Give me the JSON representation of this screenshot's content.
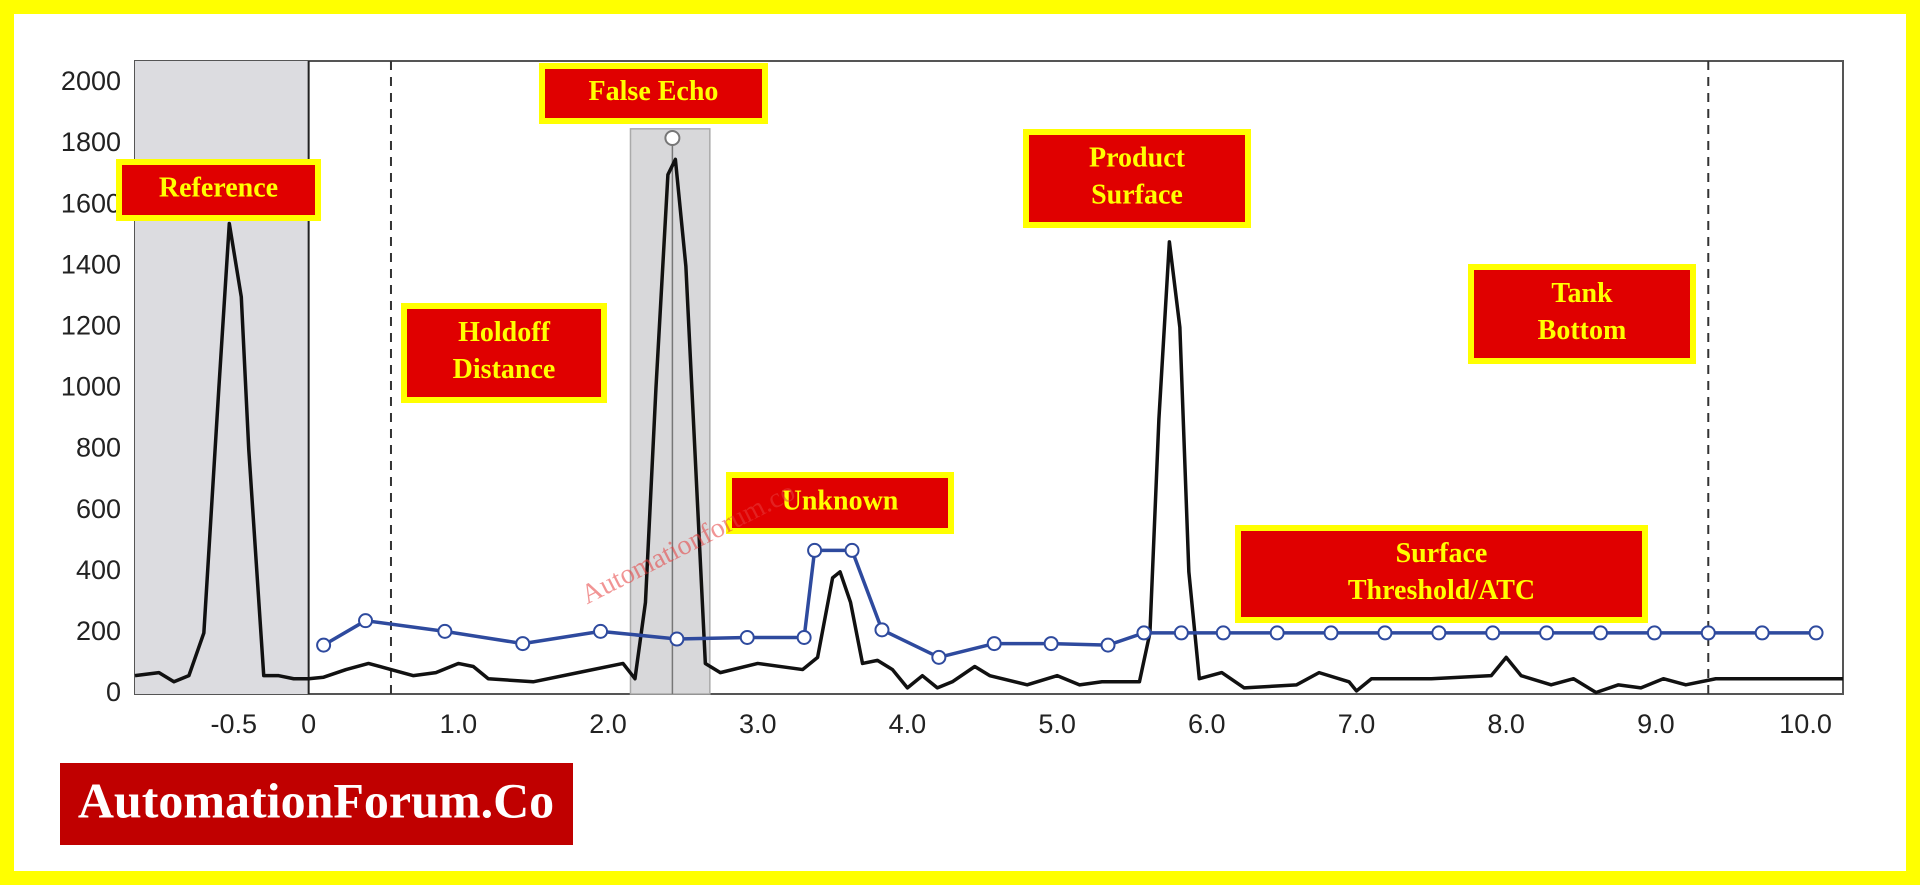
{
  "chart_data": {
    "type": "line",
    "xlim": [
      -1.16,
      10.25
    ],
    "ylim": [
      0,
      2072
    ],
    "xticks": [
      -0.5,
      0,
      {
        "value": 1,
        "label": "1.0"
      },
      {
        "value": 2,
        "label": "2.0"
      },
      {
        "value": 3,
        "label": "3.0"
      },
      {
        "value": 4,
        "label": "4.0"
      },
      {
        "value": 5,
        "label": "5.0"
      },
      {
        "value": 6,
        "label": "6.0"
      },
      {
        "value": 7,
        "label": "7.0"
      },
      {
        "value": 8,
        "label": "8.0"
      },
      {
        "value": 9,
        "label": "9.0"
      },
      {
        "value": 10,
        "label": "10.0"
      }
    ],
    "yticks": [
      0,
      200,
      400,
      600,
      800,
      1000,
      1200,
      1400,
      1600,
      1800,
      2000
    ],
    "reference_zone": [
      -1.16,
      0
    ],
    "false_echo_zone": {
      "x": [
        2.15,
        2.68
      ],
      "top": 1850,
      "peak": [
        2.43,
        1820
      ]
    },
    "dashed_lines": [
      0.55,
      9.35
    ],
    "series": [
      {
        "color": "#111111",
        "markers": false,
        "x": [
          -1.16,
          -1.0,
          -0.9,
          -0.8,
          -0.7,
          -0.6,
          -0.53,
          -0.45,
          -0.4,
          -0.3,
          -0.2,
          -0.1,
          0,
          0.1,
          0.25,
          0.4,
          0.55,
          0.7,
          0.85,
          1.0,
          1.1,
          1.2,
          1.5,
          1.8,
          2.1,
          2.18,
          2.25,
          2.32,
          2.4,
          2.45,
          2.52,
          2.6,
          2.65,
          2.75,
          3.0,
          3.3,
          3.4,
          3.5,
          3.55,
          3.62,
          3.7,
          3.8,
          3.9,
          4.0,
          4.1,
          4.2,
          4.3,
          4.45,
          4.55,
          4.8,
          5.0,
          5.15,
          5.3,
          5.55,
          5.62,
          5.68,
          5.75,
          5.82,
          5.88,
          5.95,
          6.1,
          6.25,
          6.6,
          6.75,
          6.95,
          7.0,
          7.1,
          7.5,
          7.9,
          8.0,
          8.1,
          8.3,
          8.45,
          8.6,
          8.75,
          8.9,
          9.05,
          9.2,
          9.4,
          10.25
        ],
        "values": [
          60,
          70,
          40,
          60,
          200,
          1000,
          1540,
          1300,
          800,
          60,
          60,
          50,
          50,
          55,
          80,
          100,
          80,
          60,
          70,
          100,
          90,
          50,
          40,
          70,
          100,
          50,
          300,
          1000,
          1700,
          1750,
          1400,
          600,
          100,
          70,
          100,
          80,
          120,
          380,
          400,
          300,
          100,
          110,
          80,
          20,
          60,
          20,
          40,
          90,
          60,
          30,
          60,
          30,
          40,
          40,
          200,
          900,
          1480,
          1200,
          400,
          50,
          70,
          20,
          30,
          70,
          40,
          10,
          50,
          50,
          60,
          120,
          60,
          30,
          50,
          5,
          30,
          20,
          50,
          30,
          50,
          50
        ]
      },
      {
        "color": "#2e4a9e",
        "markers": true,
        "x": [
          0.1,
          0.38,
          0.91,
          1.43,
          1.95,
          2.46,
          2.93,
          3.31,
          3.38,
          3.63,
          3.83,
          4.21,
          4.58,
          4.96,
          5.34,
          5.58,
          5.83,
          6.11,
          6.47,
          6.83,
          7.19,
          7.55,
          7.91,
          8.27,
          8.63,
          8.99,
          9.35,
          9.71,
          10.07
        ],
        "values": [
          160,
          240,
          205,
          165,
          205,
          180,
          185,
          185,
          470,
          470,
          210,
          120,
          165,
          165,
          160,
          200,
          200,
          200,
          200,
          200,
          200,
          200,
          200,
          200,
          200,
          200,
          200,
          200,
          200
        ]
      }
    ],
    "annotations": [
      {
        "lines": [
          "Reference"
        ]
      },
      {
        "lines": [
          "False Echo"
        ]
      },
      {
        "lines": [
          "Holdoff",
          "Distance"
        ]
      },
      {
        "lines": [
          "Product",
          "Surface"
        ]
      },
      {
        "lines": [
          "Tank",
          "Bottom"
        ]
      },
      {
        "lines": [
          "Unknown"
        ]
      },
      {
        "lines": [
          "Surface",
          "Threshold/ATC"
        ]
      }
    ],
    "watermark": "Automationforum.co",
    "logo": "AutomationForum.Co"
  }
}
